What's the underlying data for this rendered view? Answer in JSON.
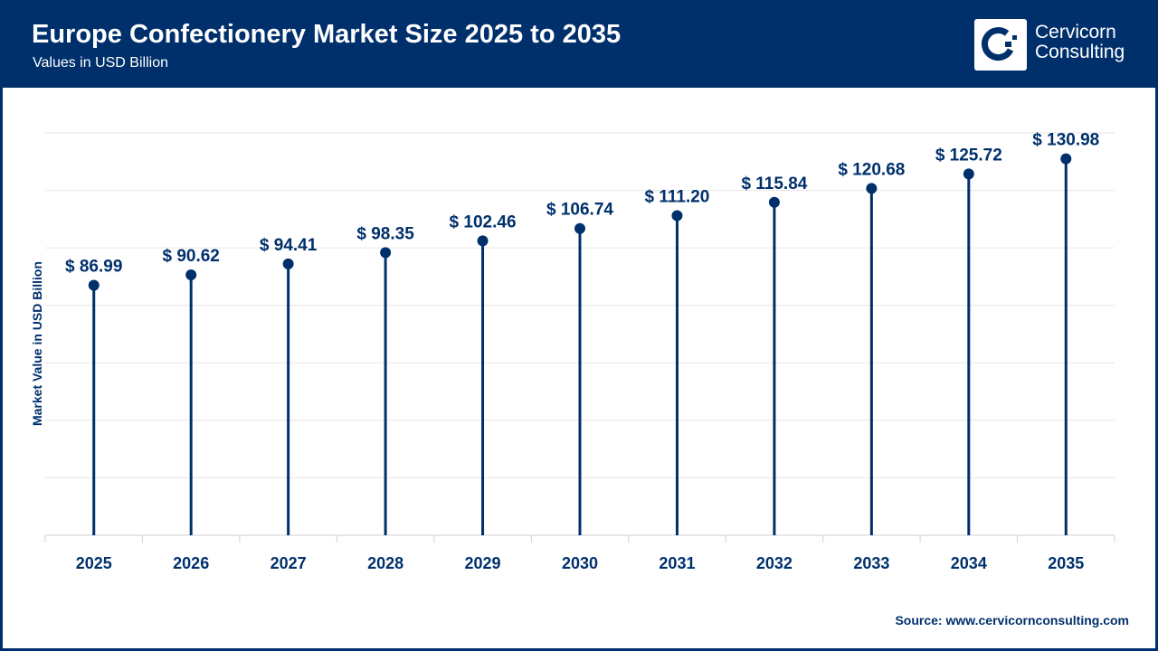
{
  "header": {
    "title": "Europe Confectionery Market Size 2025 to 2035",
    "subtitle": "Values in USD Billion",
    "logo_line1": "Cervicorn",
    "logo_line2": "Consulting"
  },
  "source": "Source: www.cervicornconsulting.com",
  "colors": {
    "primary": "#00306c",
    "grid": "#e6e6e6"
  },
  "chart_data": {
    "type": "lollipop",
    "title": "Europe Confectionery Market Size 2025 to 2035",
    "subtitle": "Values in USD Billion",
    "xlabel": "",
    "ylabel": "Market Value in USD Billion",
    "categories": [
      "2025",
      "2026",
      "2027",
      "2028",
      "2029",
      "2030",
      "2031",
      "2032",
      "2033",
      "2034",
      "2035"
    ],
    "values": [
      86.99,
      90.62,
      94.41,
      98.35,
      102.46,
      106.74,
      111.2,
      115.84,
      120.68,
      125.72,
      130.98
    ],
    "labels": [
      "$ 86.99",
      "$ 90.62",
      "$ 94.41",
      "$ 98.35",
      "$ 102.46",
      "$ 106.74",
      "$ 111.20",
      "$ 115.84",
      "$ 120.68",
      "$ 125.72",
      "$ 130.98"
    ],
    "ylim": [
      0,
      140
    ],
    "grid": true,
    "y_tick_labels_shown": false
  }
}
